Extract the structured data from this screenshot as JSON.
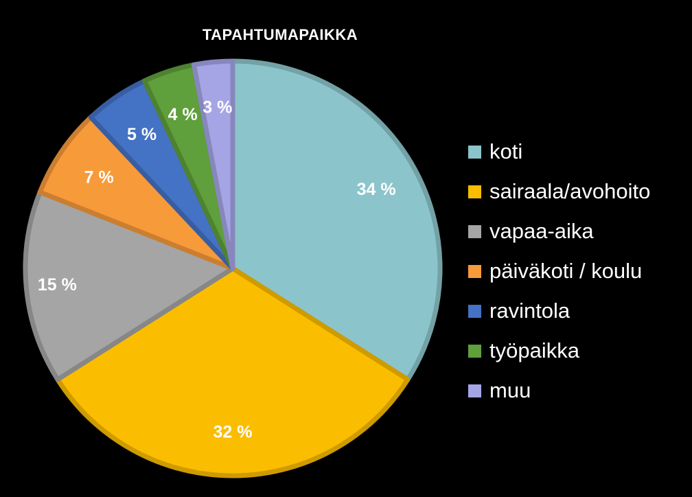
{
  "chart_data": {
    "type": "pie",
    "title": "TAPAHTUMAPAIKKA",
    "categories": [
      "koti",
      "sairaala/avohoito",
      "vapaa-aika",
      "päiväkoti / koulu",
      "ravintola",
      "työpaikka",
      "muu"
    ],
    "values": [
      34,
      32,
      15,
      7,
      5,
      4,
      3
    ],
    "data_labels": [
      "34 %",
      "32 %",
      "15 %",
      "7 %",
      "5 %",
      "4 %",
      "3 %"
    ],
    "colors": [
      "#8cc4cb",
      "#fbbd00",
      "#a5a5a5",
      "#f79a3a",
      "#4472c4",
      "#5f9f3c",
      "#a5a5e6"
    ],
    "legend_position": "right",
    "start_angle": "12 o'clock",
    "direction": "clockwise"
  }
}
